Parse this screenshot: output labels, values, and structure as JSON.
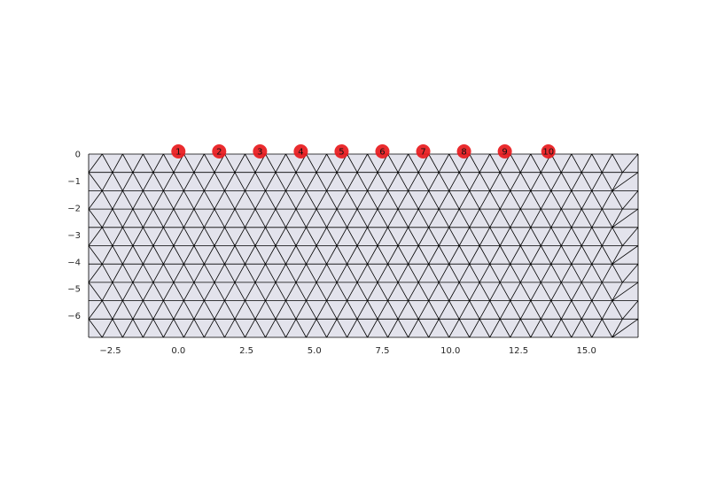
{
  "chart_data": {
    "type": "mesh",
    "title": "",
    "xlabel": "",
    "ylabel": "",
    "xlim": [
      -3.3,
      16.9
    ],
    "ylim": [
      -6.8,
      0.2
    ],
    "x_ticks": [
      -2.5,
      0.0,
      2.5,
      5.0,
      7.5,
      10.0,
      12.5,
      15.0
    ],
    "x_tick_labels": [
      "−2.5",
      "0.0",
      "2.5",
      "5.0",
      "7.5",
      "10.0",
      "12.5",
      "15.0"
    ],
    "y_ticks": [
      0,
      -1,
      -2,
      -3,
      -4,
      -5,
      -6
    ],
    "y_tick_labels": [
      "0",
      "−1",
      "−2",
      "−3",
      "−4",
      "−5",
      "−6"
    ],
    "grid": false,
    "mesh": {
      "x_range": [
        -3.3,
        16.9
      ],
      "y_range": [
        -6.8,
        0.0
      ],
      "element_size": 0.75,
      "element_type": "triangular",
      "face_color": "#e3e3ec",
      "edge_color": "#000000"
    },
    "electrodes": {
      "color": "#e8191c",
      "x": [
        0.0,
        1.5,
        3.0,
        4.5,
        6.0,
        7.5,
        9.0,
        10.5,
        12.0,
        13.6
      ],
      "y": [
        0,
        0,
        0,
        0,
        0,
        0,
        0,
        0,
        0,
        0
      ],
      "labels": [
        "1",
        "2",
        "3",
        "4",
        "5",
        "6",
        "7",
        "8",
        "9",
        "10"
      ]
    }
  }
}
